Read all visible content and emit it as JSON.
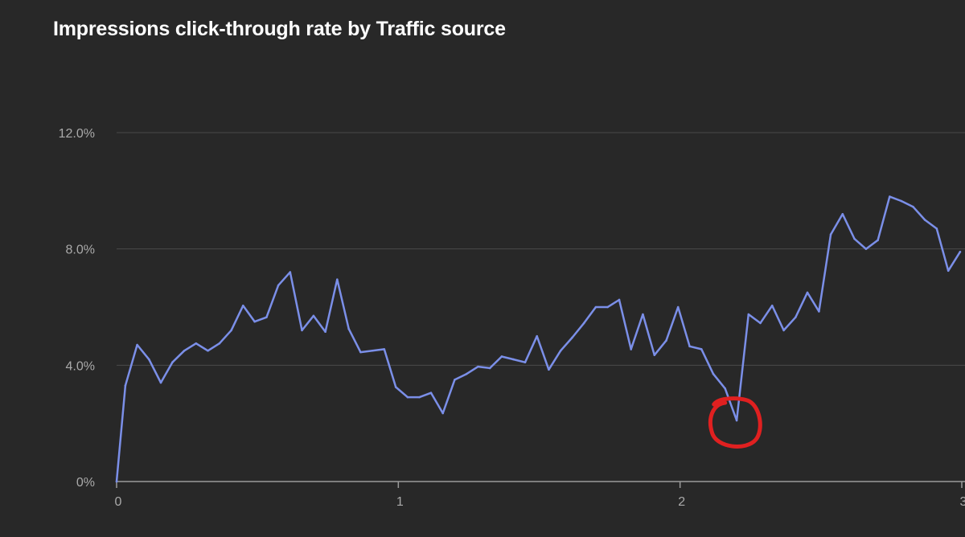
{
  "chart_data": {
    "type": "line",
    "title": "Impressions click-through rate by Traffic source",
    "xlabel": "",
    "ylabel": "",
    "xlim": [
      0,
      3
    ],
    "ylim": [
      0,
      12
    ],
    "grid": true,
    "x_ticks": [
      {
        "value": 0,
        "label": "0"
      },
      {
        "value": 1,
        "label": "1"
      },
      {
        "value": 2,
        "label": "2"
      },
      {
        "value": 3,
        "label": "3"
      }
    ],
    "y_ticks": [
      {
        "value": 0,
        "label": "0%"
      },
      {
        "value": 4,
        "label": "4.0%"
      },
      {
        "value": 8,
        "label": "8.0%"
      },
      {
        "value": 12,
        "label": "12.0%"
      }
    ],
    "series": [
      {
        "name": "Impressions click-through rate",
        "color": "#7b8fe8",
        "x": [
          0,
          0.031,
          0.073,
          0.115,
          0.157,
          0.198,
          0.24,
          0.282,
          0.324,
          0.365,
          0.407,
          0.449,
          0.49,
          0.532,
          0.574,
          0.616,
          0.658,
          0.699,
          0.741,
          0.783,
          0.824,
          0.866,
          0.908,
          0.95,
          0.991,
          1.033,
          1.075,
          1.116,
          1.158,
          1.2,
          1.242,
          1.283,
          1.325,
          1.367,
          1.409,
          1.45,
          1.492,
          1.534,
          1.576,
          1.617,
          1.659,
          1.701,
          1.743,
          1.784,
          1.826,
          1.868,
          1.909,
          1.951,
          1.993,
          2.034,
          2.076,
          2.118,
          2.16,
          2.201,
          2.243,
          2.285,
          2.327,
          2.368,
          2.41,
          2.452,
          2.493,
          2.535,
          2.577,
          2.619,
          2.66,
          2.702,
          2.744,
          2.785,
          2.827,
          2.869,
          2.911,
          2.952,
          2.994
        ],
        "y": [
          0,
          3.3,
          4.7,
          4.2,
          3.4,
          4.1,
          4.5,
          4.75,
          4.5,
          4.75,
          5.2,
          6.05,
          5.5,
          5.65,
          6.75,
          7.2,
          5.2,
          5.7,
          5.15,
          6.95,
          5.25,
          4.45,
          4.5,
          4.55,
          3.25,
          2.9,
          2.9,
          3.05,
          2.35,
          3.5,
          3.7,
          3.95,
          3.9,
          4.3,
          4.2,
          4.1,
          5.0,
          3.85,
          4.5,
          4.95,
          5.45,
          6.0,
          6.0,
          6.25,
          4.55,
          5.75,
          4.35,
          4.85,
          6.0,
          4.65,
          4.55,
          3.7,
          3.2,
          2.1,
          5.75,
          5.45,
          6.05,
          5.2,
          5.65,
          6.5,
          5.85,
          8.5,
          9.2,
          8.35,
          8.0,
          8.3,
          9.8,
          9.65,
          9.45,
          9.0,
          8.7,
          7.25,
          7.9
        ]
      }
    ],
    "annotations": [
      {
        "type": "circle",
        "color": "#e02020",
        "x": 2.2,
        "y": 2.1
      }
    ]
  }
}
